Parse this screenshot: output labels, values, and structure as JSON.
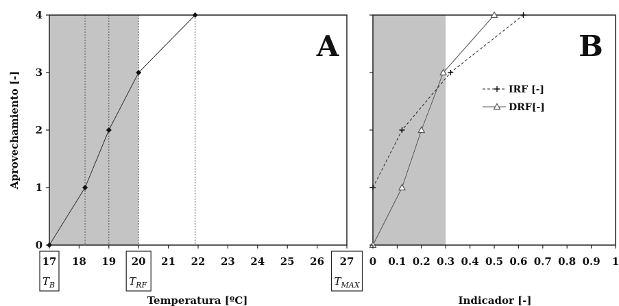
{
  "chart_data": [
    {
      "type": "line",
      "panel_label": "A",
      "xlabel": "Temperatura [ºC]",
      "ylabel": "Aprovechamiento [-]",
      "xlim": [
        17,
        27
      ],
      "ylim": [
        0,
        4
      ],
      "x_ticks": [
        "17",
        "18",
        "19",
        "20",
        "21",
        "22",
        "23",
        "24",
        "25",
        "26",
        "27"
      ],
      "y_ticks": [
        "0",
        "1",
        "2",
        "3",
        "4"
      ],
      "shaded_region_x": [
        17,
        20
      ],
      "vertical_dotted_lines": [
        18.2,
        19,
        20,
        21.9
      ],
      "special_ticks": [
        {
          "value": 17,
          "base": "T",
          "sub": "B"
        },
        {
          "value": 20,
          "base": "T",
          "sub": "RF"
        },
        {
          "value": 27,
          "base": "T",
          "sub": "MAX"
        }
      ],
      "series": [
        {
          "points": [
            [
              17,
              0
            ],
            [
              18.2,
              1
            ],
            [
              19,
              2
            ],
            [
              20,
              3
            ],
            [
              21.9,
              4
            ]
          ],
          "color": "#333333",
          "marker": "diamond"
        }
      ]
    },
    {
      "type": "line",
      "panel_label": "B",
      "xlabel": "Indicador [-]",
      "xlim": [
        0,
        1
      ],
      "ylim": [
        0,
        4
      ],
      "x_ticks": [
        "0",
        "0.1",
        "0.2",
        "0.3",
        "0.4",
        "0.5",
        "0.6",
        "0.7",
        "0.8",
        "0.9",
        "1"
      ],
      "shaded_region_x": [
        0,
        0.3
      ],
      "legend_placement": "upper-middle-right",
      "series": [
        {
          "name": "IRF [-]",
          "points": [
            [
              0,
              0
            ],
            [
              0,
              1
            ],
            [
              0.12,
              2
            ],
            [
              0.32,
              3
            ],
            [
              0.62,
              4
            ]
          ],
          "color": "#222222",
          "marker": "plus",
          "dash": "dashed"
        },
        {
          "name": "DRF[-]",
          "points": [
            [
              0,
              0
            ],
            [
              0.12,
              1
            ],
            [
              0.2,
              2
            ],
            [
              0.29,
              3
            ],
            [
              0.5,
              4
            ]
          ],
          "color": "#555555",
          "marker": "triangle",
          "dash": "solid"
        }
      ]
    }
  ]
}
